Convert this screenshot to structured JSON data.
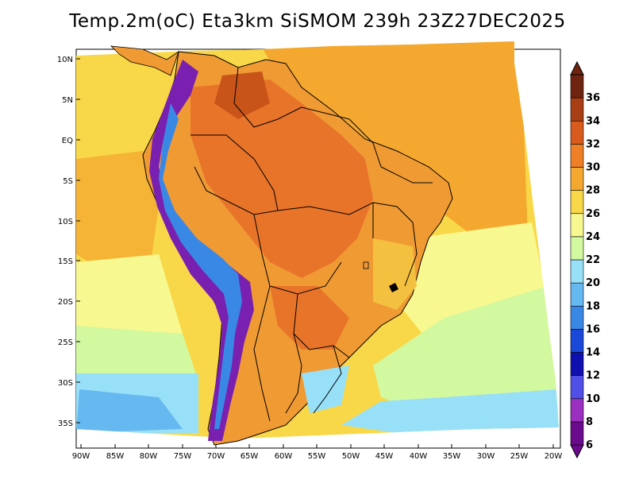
{
  "title": "Temp.2m(oC) Eta3km SiSMOM 239h 23Z27DEC2025",
  "map": {
    "region": "South America",
    "variable": "2-meter temperature",
    "units": "oC",
    "model": "Eta3km",
    "product": "SiSMOM",
    "forecast_hour": "239h",
    "valid_time": "23Z27DEC2025"
  },
  "axes": {
    "lat_labels": [
      "10N",
      "5N",
      "EQ",
      "5S",
      "10S",
      "15S",
      "20S",
      "25S",
      "30S",
      "35S"
    ],
    "lon_labels": [
      "90W",
      "85W",
      "80W",
      "75W",
      "70W",
      "65W",
      "60W",
      "55W",
      "50W",
      "45W",
      "40W",
      "35W",
      "30W",
      "25W",
      "20W"
    ]
  },
  "colorbar": {
    "levels": [
      "6",
      "8",
      "10",
      "12",
      "14",
      "16",
      "18",
      "20",
      "22",
      "24",
      "26",
      "28",
      "30",
      "32",
      "34",
      "36"
    ],
    "colors": [
      "#6a0a8c",
      "#9a2fc0",
      "#5050e8",
      "#1010b0",
      "#1a48d8",
      "#3a88e6",
      "#66b8f0",
      "#98e0f8",
      "#d2f8a0",
      "#f8f890",
      "#f8d848",
      "#f4a830",
      "#f08028",
      "#d85a1c",
      "#a83e14",
      "#6e2410"
    ]
  },
  "colors": {
    "ocean_warm": "#f6b23a",
    "ocean_mid": "#f8d848",
    "ocean_cool": "#f4f48c",
    "ocean_south": "#d2f8a0",
    "ocean_cold": "#98e0f8",
    "land_hot": "#e8742a",
    "land_warm": "#f09a34",
    "andes_cold": "#7a20b0",
    "border_line": "#000000"
  }
}
